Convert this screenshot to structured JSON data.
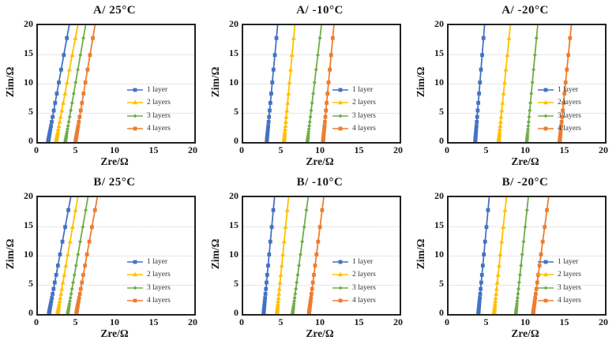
{
  "figure": {
    "layout": "2 rows x 3 columns of impedance spectra",
    "legend_labels": [
      "1 layer",
      "2 layers",
      "3 layers",
      "4 layers"
    ],
    "series_colors": [
      "#4472C4",
      "#FFC000",
      "#70AD47",
      "#ED7D31"
    ],
    "series_markers": [
      "square",
      "triangle",
      "diamond",
      "square"
    ],
    "gridline_color": "#cfcfcf",
    "axis_border_color": "#222222"
  },
  "marker_y_values": [
    0.1,
    0.2,
    0.3,
    0.42,
    0.56,
    0.72,
    0.9,
    1.12,
    1.4,
    1.75,
    2.2,
    2.75,
    3.45,
    4.3,
    5.4,
    6.7,
    8.3,
    10.2,
    12.4,
    14.9,
    17.8
  ],
  "chart_data": [
    {
      "type": "line",
      "title": "A/ 25°C",
      "xlabel": "Zre/Ω",
      "ylabel": "Zim/Ω",
      "xlim": [
        0,
        20
      ],
      "ylim": [
        0,
        20
      ],
      "xticks": [
        0,
        5,
        10,
        15,
        20
      ],
      "yticks": [
        0,
        5,
        10,
        15,
        20
      ],
      "grid": "horizontal-dotted",
      "legend_position": "inside-right-middle",
      "series": [
        {
          "name": "1 layer",
          "color": "#4472C4",
          "marker": "square",
          "x_at_y0": 1.3,
          "x_at_y20": 4.0
        },
        {
          "name": "2 layers",
          "color": "#FFC000",
          "marker": "triangle",
          "x_at_y0": 2.3,
          "x_at_y20": 5.1
        },
        {
          "name": "3 layers",
          "color": "#70AD47",
          "marker": "diamond",
          "x_at_y0": 3.5,
          "x_at_y20": 6.1
        },
        {
          "name": "4 layers",
          "color": "#ED7D31",
          "marker": "square",
          "x_at_y0": 4.8,
          "x_at_y20": 7.3
        }
      ]
    },
    {
      "type": "line",
      "title": "A/ -10°C",
      "xlabel": "Zre/Ω",
      "ylabel": "Zim/Ω",
      "xlim": [
        0,
        20
      ],
      "ylim": [
        0,
        20
      ],
      "xticks": [
        0,
        5,
        10,
        15,
        20
      ],
      "yticks": [
        0,
        5,
        10,
        15,
        20
      ],
      "grid": "horizontal-dotted",
      "legend_position": "inside-right-middle",
      "series": [
        {
          "name": "1 layer",
          "color": "#4472C4",
          "marker": "square",
          "x_at_y0": 3.0,
          "x_at_y20": 4.4
        },
        {
          "name": "2 layers",
          "color": "#FFC000",
          "marker": "triangle",
          "x_at_y0": 5.2,
          "x_at_y20": 6.6
        },
        {
          "name": "3 layers",
          "color": "#70AD47",
          "marker": "diamond",
          "x_at_y0": 8.2,
          "x_at_y20": 10.0
        },
        {
          "name": "4 layers",
          "color": "#ED7D31",
          "marker": "square",
          "x_at_y0": 10.2,
          "x_at_y20": 11.6
        }
      ]
    },
    {
      "type": "line",
      "title": "A/ -20°C",
      "xlabel": "Zre/Ω",
      "ylabel": "Zim/Ω",
      "xlim": [
        0,
        20
      ],
      "ylim": [
        0,
        20
      ],
      "xticks": [
        0,
        5,
        10,
        15,
        20
      ],
      "yticks": [
        0,
        5,
        10,
        15,
        20
      ],
      "grid": "horizontal-dotted",
      "legend_position": "inside-right-middle",
      "series": [
        {
          "name": "1 layer",
          "color": "#4472C4",
          "marker": "square",
          "x_at_y0": 3.4,
          "x_at_y20": 4.6
        },
        {
          "name": "2 layers",
          "color": "#FFC000",
          "marker": "triangle",
          "x_at_y0": 6.4,
          "x_at_y20": 7.9
        },
        {
          "name": "3 layers",
          "color": "#70AD47",
          "marker": "diamond",
          "x_at_y0": 10.0,
          "x_at_y20": 11.4
        },
        {
          "name": "4 layers",
          "color": "#ED7D31",
          "marker": "square",
          "x_at_y0": 14.2,
          "x_at_y20": 15.7
        }
      ]
    },
    {
      "type": "line",
      "title": "B/ 25°C",
      "xlabel": "Zre/Ω",
      "ylabel": "Zim/Ω",
      "xlim": [
        0,
        20
      ],
      "ylim": [
        0,
        20
      ],
      "xticks": [
        0,
        5,
        10,
        15,
        20
      ],
      "yticks": [
        0,
        5,
        10,
        15,
        20
      ],
      "grid": "horizontal-dotted",
      "legend_position": "inside-right-middle",
      "series": [
        {
          "name": "1 layer",
          "color": "#4472C4",
          "marker": "square",
          "x_at_y0": 1.4,
          "x_at_y20": 4.2
        },
        {
          "name": "2 layers",
          "color": "#FFC000",
          "marker": "triangle",
          "x_at_y0": 2.5,
          "x_at_y20": 5.1
        },
        {
          "name": "3 layers",
          "color": "#70AD47",
          "marker": "diamond",
          "x_at_y0": 3.8,
          "x_at_y20": 6.4
        },
        {
          "name": "4 layers",
          "color": "#ED7D31",
          "marker": "square",
          "x_at_y0": 4.9,
          "x_at_y20": 7.6
        }
      ]
    },
    {
      "type": "line",
      "title": "B/ -10°C",
      "xlabel": "Zre/Ω",
      "ylabel": "Zim/Ω",
      "xlim": [
        0,
        20
      ],
      "ylim": [
        0,
        20
      ],
      "xticks": [
        0,
        5,
        10,
        15,
        20
      ],
      "yticks": [
        0,
        5,
        10,
        15,
        20
      ],
      "grid": "horizontal-dotted",
      "legend_position": "inside-right-middle",
      "series": [
        {
          "name": "1 layer",
          "color": "#4472C4",
          "marker": "square",
          "x_at_y0": 2.6,
          "x_at_y20": 4.0
        },
        {
          "name": "2 layers",
          "color": "#FFC000",
          "marker": "triangle",
          "x_at_y0": 4.3,
          "x_at_y20": 5.8
        },
        {
          "name": "3 layers",
          "color": "#70AD47",
          "marker": "diamond",
          "x_at_y0": 6.3,
          "x_at_y20": 8.3
        },
        {
          "name": "4 layers",
          "color": "#ED7D31",
          "marker": "square",
          "x_at_y0": 8.4,
          "x_at_y20": 10.3
        }
      ]
    },
    {
      "type": "line",
      "title": "B/ -20°C",
      "xlabel": "Zre/Ω",
      "ylabel": "Zim/Ω",
      "xlim": [
        0,
        20
      ],
      "ylim": [
        0,
        20
      ],
      "xticks": [
        0,
        5,
        10,
        15,
        20
      ],
      "yticks": [
        0,
        5,
        10,
        15,
        20
      ],
      "grid": "horizontal-dotted",
      "legend_position": "inside-right-middle",
      "series": [
        {
          "name": "1 layer",
          "color": "#4472C4",
          "marker": "square",
          "x_at_y0": 3.8,
          "x_at_y20": 5.2
        },
        {
          "name": "2 layers",
          "color": "#FFC000",
          "marker": "triangle",
          "x_at_y0": 5.8,
          "x_at_y20": 7.4
        },
        {
          "name": "3 layers",
          "color": "#70AD47",
          "marker": "diamond",
          "x_at_y0": 8.6,
          "x_at_y20": 10.2
        },
        {
          "name": "4 layers",
          "color": "#ED7D31",
          "marker": "square",
          "x_at_y0": 10.8,
          "x_at_y20": 12.8
        }
      ]
    }
  ]
}
